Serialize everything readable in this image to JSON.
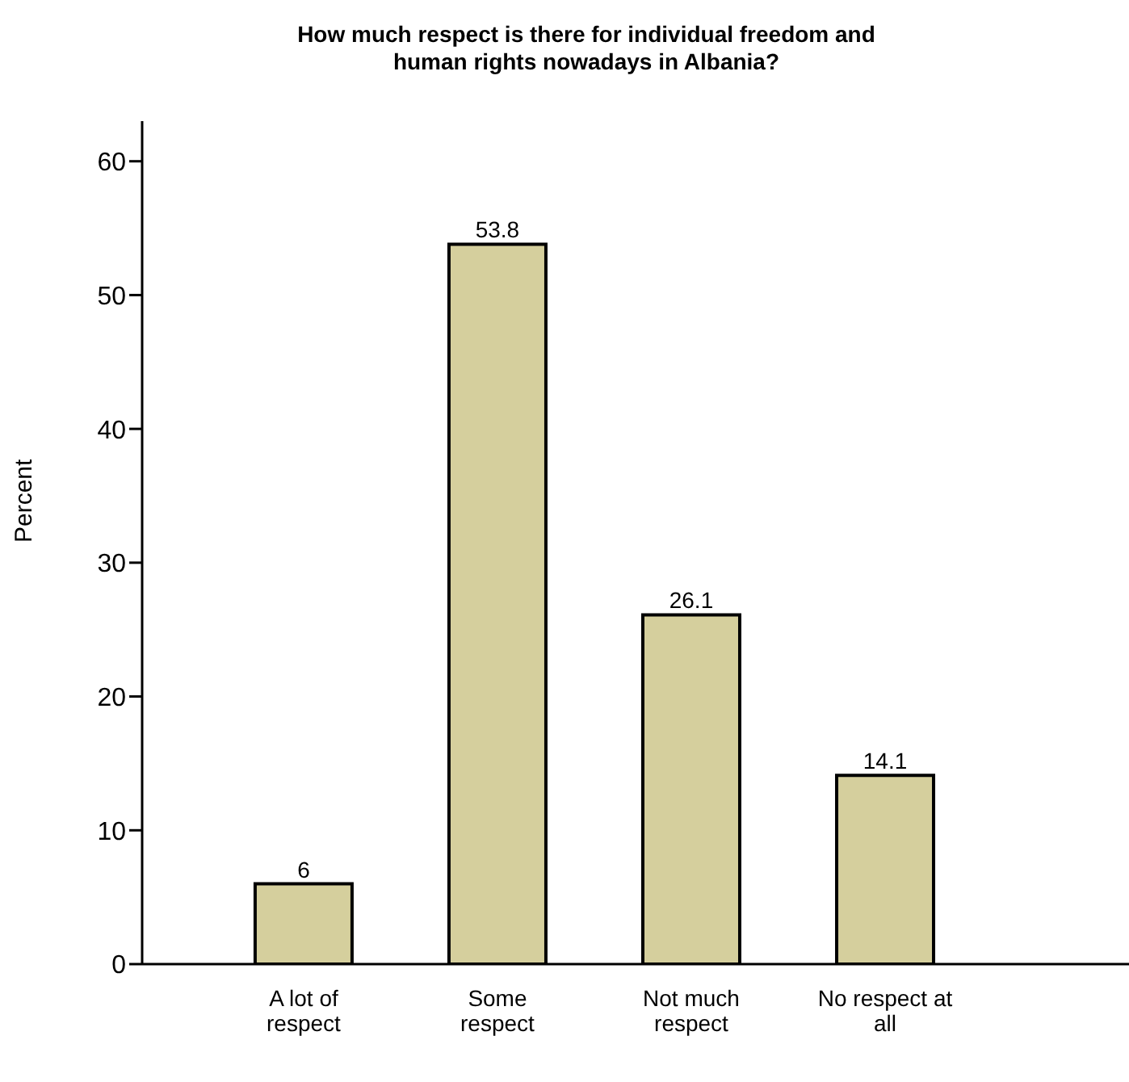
{
  "chart_data": {
    "type": "bar",
    "title": "How much respect is there for individual freedom and human rights nowadays in Albania?",
    "ylabel": "Percent",
    "categories": [
      "A lot of respect",
      "Some respect",
      "Not much respect",
      "No respect at all"
    ],
    "values": [
      6,
      53.8,
      26.1,
      14.1
    ],
    "color": "#d5cf9d",
    "ylim": [
      0,
      63
    ],
    "yticks": [
      0,
      10,
      20,
      30,
      40,
      50,
      60
    ],
    "data_labels": true
  }
}
